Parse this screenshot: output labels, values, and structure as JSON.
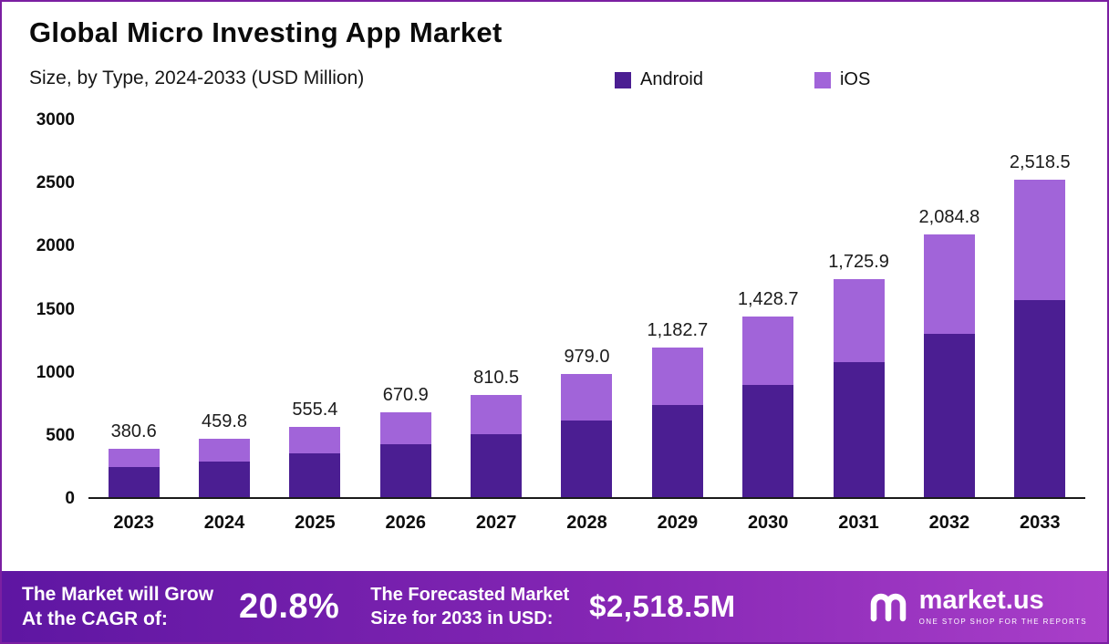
{
  "header": {
    "title": "Global Micro Investing App Market",
    "subtitle": "Size, by Type, 2024-2033 (USD Million)"
  },
  "legend": [
    {
      "label": "Android",
      "color": "#4b1e92"
    },
    {
      "label": "iOS",
      "color": "#a164d9"
    }
  ],
  "chart_data": {
    "type": "bar",
    "stacked": true,
    "title": "Global Micro Investing App Market",
    "subtitle": "Size, by Type, 2024-2033 (USD Million)",
    "xlabel": "",
    "ylabel": "",
    "ylim": [
      0,
      3000
    ],
    "y_ticks": [
      0,
      500,
      1000,
      1500,
      2000,
      2500,
      3000
    ],
    "grid": false,
    "legend_position": "top",
    "categories": [
      "2023",
      "2024",
      "2025",
      "2026",
      "2027",
      "2028",
      "2029",
      "2030",
      "2031",
      "2032",
      "2033"
    ],
    "series": [
      {
        "name": "Android",
        "color": "#4b1e92",
        "values": [
          236.0,
          285.1,
          344.3,
          416.0,
          502.5,
          607.0,
          733.3,
          885.8,
          1070.1,
          1292.6,
          1561.5
        ]
      },
      {
        "name": "iOS",
        "color": "#a164d9",
        "values": [
          144.6,
          174.7,
          211.1,
          254.9,
          308.0,
          372.0,
          449.4,
          542.9,
          655.8,
          792.2,
          957.0
        ]
      }
    ],
    "totals": [
      380.6,
      459.8,
      555.4,
      670.9,
      810.5,
      979.0,
      1182.7,
      1428.7,
      1725.9,
      2084.8,
      2518.5
    ],
    "total_labels": [
      "380.6",
      "459.8",
      "555.4",
      "670.9",
      "810.5",
      "979.0",
      "1,182.7",
      "1,428.7",
      "1,725.9",
      "2,084.8",
      "2,518.5"
    ]
  },
  "footer": {
    "cagr_label": "The Market will Grow\nAt the CAGR of:",
    "cagr_value": "20.8%",
    "forecast_label": "The Forecasted Market\nSize for 2033 in USD:",
    "forecast_value": "$2,518.5M",
    "brand": "market.us",
    "brand_tagline": "ONE STOP SHOP FOR THE REPORTS"
  },
  "colors": {
    "android": "#4b1e92",
    "ios": "#a164d9",
    "page_border": "#7b1fa2",
    "banner_gradient_start": "#5e16a2",
    "banner_gradient_end": "#a93fc9"
  }
}
